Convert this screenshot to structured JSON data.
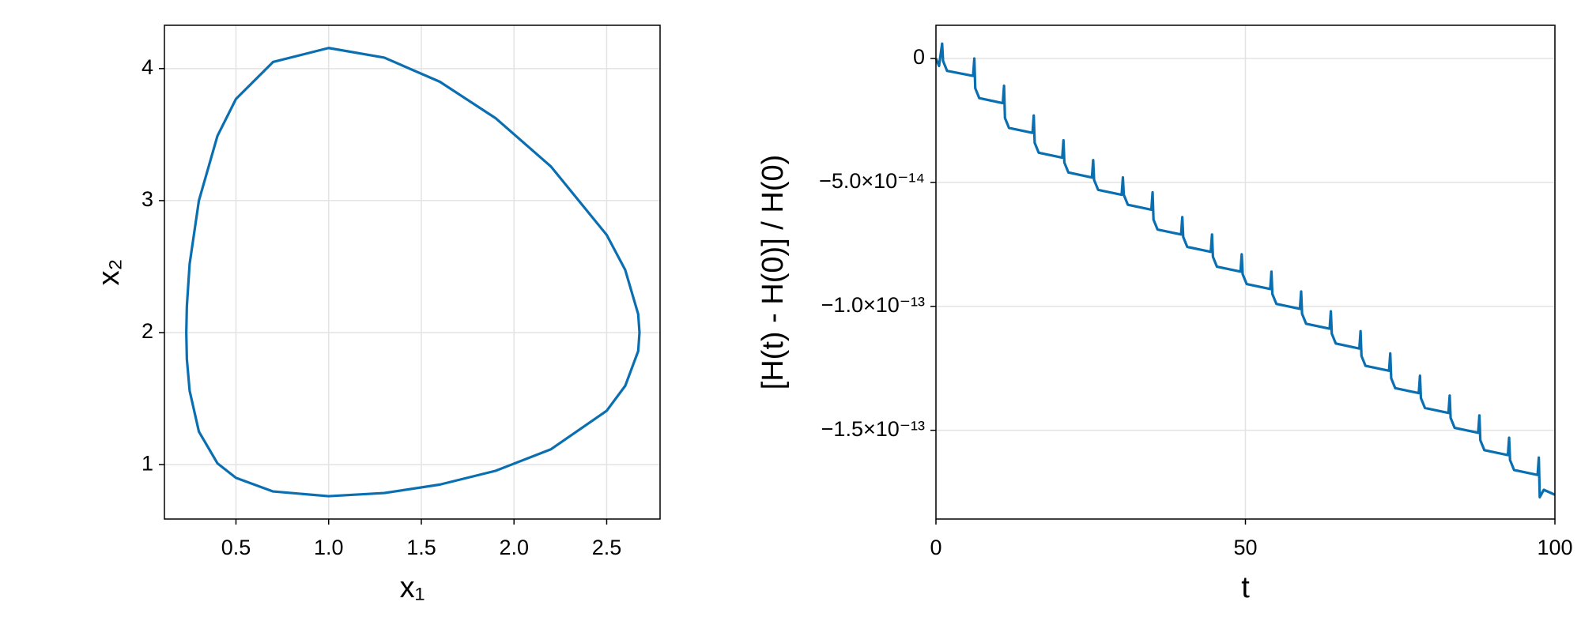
{
  "chart_data": [
    {
      "type": "line",
      "xlabel": "x₁",
      "ylabel": "x₂",
      "color": "#0a6fb0",
      "grid": true,
      "x": [
        0.235,
        0.25,
        0.3,
        0.4,
        0.5,
        0.7,
        1,
        1.3,
        1.6,
        1.9,
        2.2,
        2.5,
        2.6,
        2.67,
        2.677,
        2.67,
        2.6,
        2.5,
        2.2,
        1.9,
        1.6,
        1.3,
        1,
        0.7,
        0.5,
        0.4,
        0.3,
        0.25,
        0.235,
        0.232,
        0.235
      ],
      "values": [
        2.2,
        2.52,
        3.0,
        3.49,
        3.77,
        4.05,
        4.156,
        4.083,
        3.9,
        3.625,
        3.257,
        2.74,
        2.475,
        2.14,
        2,
        1.86,
        1.597,
        1.408,
        1.117,
        0.953,
        0.849,
        0.785,
        0.761,
        0.797,
        0.9,
        1.01,
        1.25,
        1.56,
        1.8,
        2,
        2.2
      ],
      "xlim": [
        0.114,
        2.788
      ],
      "ylim": [
        0.588,
        4.328
      ],
      "xticks": [
        0.5,
        {
          "value": 1,
          "label": "1.0"
        },
        1.5,
        {
          "value": 2,
          "label": "2.0"
        },
        2.5
      ],
      "yticks": [
        1,
        2,
        3,
        4
      ]
    },
    {
      "type": "line",
      "xlabel": "t",
      "ylabel": "[H(t) - H(0)] / H(0)",
      "color": "#0a6fb0",
      "grid": true,
      "x": [
        0,
        0.5,
        1,
        1.15,
        1.8,
        6.0,
        6.2,
        6.35,
        7.0,
        10.8,
        11,
        11.15,
        11.8,
        15.6,
        15.8,
        15.95,
        16.6,
        20.4,
        20.6,
        20.75,
        21.4,
        25.2,
        25.4,
        25.55,
        26.2,
        30.0,
        30.2,
        30.35,
        31.0,
        34.8,
        35,
        35.15,
        35.8,
        39.6,
        39.8,
        39.95,
        40.6,
        44.4,
        44.6,
        44.75,
        45.4,
        49.2,
        49.4,
        49.55,
        50.2,
        54.0,
        54.2,
        54.35,
        55.0,
        58.8,
        59,
        59.15,
        59.8,
        63.6,
        63.8,
        63.95,
        64.6,
        68.4,
        68.6,
        68.75,
        69.4,
        73.2,
        73.4,
        73.55,
        74.2,
        78.0,
        78.2,
        78.35,
        79.0,
        82.8,
        83,
        83.15,
        83.8,
        87.6,
        87.8,
        87.95,
        88.6,
        92.4,
        92.6,
        92.75,
        93.4,
        97.2,
        97.4,
        97.55,
        98.2,
        100
      ],
      "values": [
        0,
        -3e-15,
        6e-15,
        -1e-15,
        -5e-15,
        -7e-15,
        0,
        -1.2e-14,
        -1.6e-14,
        -1.8e-14,
        -1.1e-14,
        -2.4e-14,
        -2.8e-14,
        -3e-14,
        -2.3e-14,
        -3.4e-14,
        -3.8e-14,
        -4e-14,
        -3.3e-14,
        -4.2e-14,
        -4.6e-14,
        -4.8e-14,
        -4.1e-14,
        -4.9e-14,
        -5.3e-14,
        -5.5e-14,
        -4.8e-14,
        -5.5e-14,
        -5.9e-14,
        -6.1e-14,
        -5.4e-14,
        -6.5e-14,
        -6.9e-14,
        -7.1e-14,
        -6.4e-14,
        -7.2e-14,
        -7.6e-14,
        -7.8e-14,
        -7.1e-14,
        -8e-14,
        -8.4e-14,
        -8.6e-14,
        -7.9e-14,
        -8.7e-14,
        -9.1e-14,
        -9.3e-14,
        -8.6e-14,
        -9.5e-14,
        -9.9e-14,
        -1.01e-13,
        -9.4e-14,
        -1.03e-13,
        -1.07e-13,
        -1.09e-13,
        -1.02e-13,
        -1.11e-13,
        -1.15e-13,
        -1.17e-13,
        -1.1e-13,
        -1.2e-13,
        -1.24e-13,
        -1.26e-13,
        -1.19e-13,
        -1.29e-13,
        -1.33e-13,
        -1.35e-13,
        -1.28e-13,
        -1.37e-13,
        -1.41e-13,
        -1.43e-13,
        -1.36e-13,
        -1.45e-13,
        -1.49e-13,
        -1.51e-13,
        -1.44e-13,
        -1.54e-13,
        -1.58e-13,
        -1.6e-13,
        -1.53e-13,
        -1.62e-13,
        -1.66e-13,
        -1.68e-13,
        -1.61e-13,
        -1.77e-13,
        -1.74e-13,
        -1.76e-13
      ],
      "xlim": [
        0,
        100
      ],
      "ylim": [
        -1.858e-13,
        1.34e-14
      ],
      "xticks": [
        0,
        50,
        100
      ],
      "yticks": [
        0,
        {
          "value": -5e-14,
          "label": "−5.0×10⁻¹⁴"
        },
        {
          "value": -1e-13,
          "label": "−1.0×10⁻¹³"
        },
        {
          "value": -1.5e-13,
          "label": "−1.5×10⁻¹³"
        }
      ]
    }
  ]
}
